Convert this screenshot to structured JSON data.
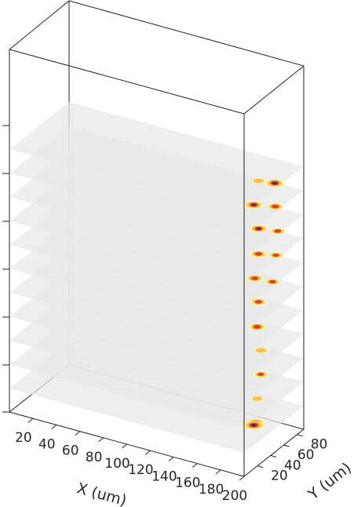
{
  "chart_data": {
    "type": "scatter",
    "subtype": "3d-stacked-slices",
    "title": "",
    "xlabel": "X (um)",
    "ylabel": "Y (um)",
    "zlabel": "",
    "x_ticks": [
      20,
      40,
      60,
      80,
      100,
      120,
      140,
      160,
      180,
      200
    ],
    "y_ticks": [
      20,
      40,
      60,
      80
    ],
    "xlim": [
      0,
      200
    ],
    "ylim": [
      0,
      90
    ],
    "slice_count": 11,
    "slice_color": "#e6e6e6",
    "hotspot_colors": [
      "#fff3a0",
      "#f7b733",
      "#d8432b",
      "#5a2a5e"
    ],
    "grid": false,
    "hotspots": [
      {
        "slice": 10,
        "x": 195,
        "y": 55,
        "intensity": 0.9
      },
      {
        "slice": 10,
        "x": 183,
        "y": 52,
        "intensity": 0.5
      },
      {
        "slice": 9,
        "x": 180,
        "y": 50,
        "intensity": 0.85
      },
      {
        "slice": 9,
        "x": 195,
        "y": 56,
        "intensity": 0.7
      },
      {
        "slice": 8,
        "x": 183,
        "y": 52,
        "intensity": 0.8
      },
      {
        "slice": 8,
        "x": 197,
        "y": 56,
        "intensity": 0.6
      },
      {
        "slice": 7,
        "x": 184,
        "y": 50,
        "intensity": 0.7
      },
      {
        "slice": 7,
        "x": 196,
        "y": 55,
        "intensity": 0.55
      },
      {
        "slice": 6,
        "x": 182,
        "y": 48,
        "intensity": 0.7
      },
      {
        "slice": 6,
        "x": 196,
        "y": 50,
        "intensity": 0.6
      },
      {
        "slice": 5,
        "x": 184,
        "y": 50,
        "intensity": 0.65
      },
      {
        "slice": 4,
        "x": 184,
        "y": 48,
        "intensity": 0.75
      },
      {
        "slice": 3,
        "x": 186,
        "y": 50,
        "intensity": 0.5
      },
      {
        "slice": 2,
        "x": 186,
        "y": 50,
        "intensity": 0.55
      },
      {
        "slice": 1,
        "x": 184,
        "y": 48,
        "intensity": 0.45
      },
      {
        "slice": 0,
        "x": 183,
        "y": 47,
        "intensity": 0.9
      },
      {
        "slice": 0,
        "x": 184,
        "y": 43,
        "intensity": 1.0
      }
    ]
  }
}
